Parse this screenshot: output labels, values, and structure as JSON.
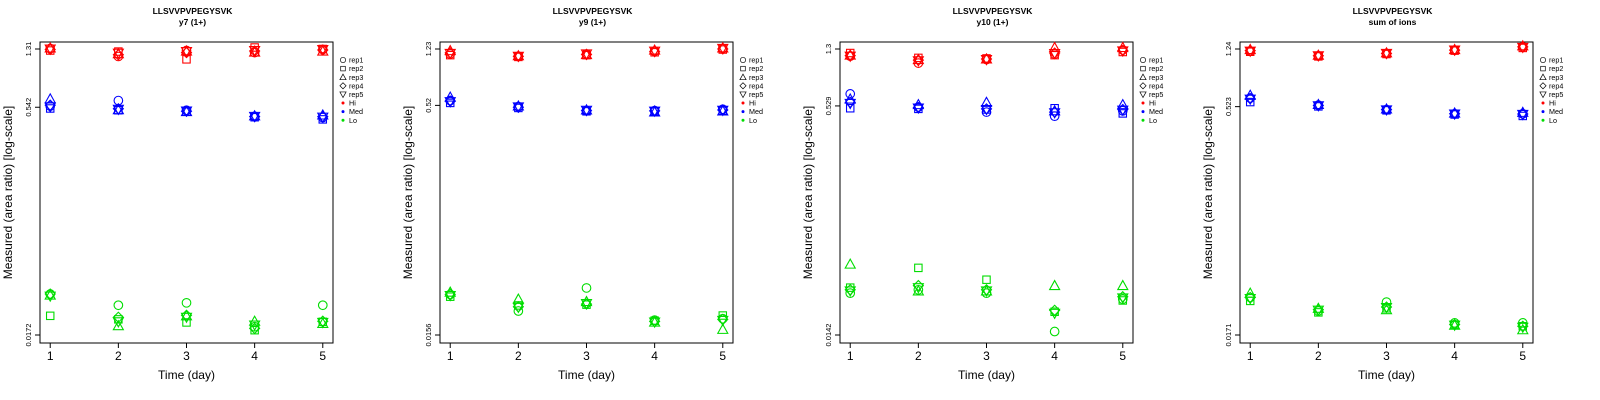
{
  "chart_data": [
    {
      "type": "scatter",
      "title": "LLSVVPVPEGYSVK",
      "subtitle": "y7 (1+)",
      "xlabel": "Time (day)",
      "ylabel": "Measured (area ratio) [log-scale]",
      "log_y": true,
      "ylim": [
        0.0172,
        1.31
      ],
      "xticks": [
        "1",
        "2",
        "3",
        "4",
        "5"
      ],
      "yticks": [
        "0.0172",
        "0.542",
        "1.31"
      ],
      "legend": {
        "position": "right",
        "entries": [
          {
            "label": "rep1",
            "shape": "circle"
          },
          {
            "label": "rep2",
            "shape": "square"
          },
          {
            "label": "rep3",
            "shape": "triangle"
          },
          {
            "label": "rep4",
            "shape": "diamond"
          },
          {
            "label": "rep5",
            "shape": "triangle-down"
          },
          {
            "label": "Hi",
            "color": "#ff0000"
          },
          {
            "label": "Med",
            "color": "#0000ff"
          },
          {
            "label": "Lo",
            "color": "#00dd00"
          }
        ]
      },
      "groups": [
        {
          "name": "Hi",
          "color": "#ff0000",
          "reps": [
            [
              1.32,
              1.17,
              1.28,
              1.24,
              1.3
            ],
            [
              1.28,
              1.26,
              1.12,
              1.34,
              1.31
            ],
            [
              1.33,
              1.22,
              1.27,
              1.25,
              1.27
            ],
            [
              1.3,
              1.2,
              1.24,
              1.27,
              1.29
            ],
            [
              1.31,
              1.23,
              1.26,
              1.28,
              1.3
            ]
          ]
        },
        {
          "name": "Med",
          "color": "#0000ff",
          "reps": [
            [
              0.552,
              0.6,
              0.518,
              0.472,
              0.464
            ],
            [
              0.532,
              0.518,
              0.507,
              0.466,
              0.451
            ],
            [
              0.615,
              0.522,
              0.508,
              0.476,
              0.482
            ],
            [
              0.56,
              0.53,
              0.51,
              0.47,
              0.47
            ],
            [
              0.545,
              0.525,
              0.512,
              0.472,
              0.466
            ]
          ]
        },
        {
          "name": "Lo",
          "color": "#00dd00",
          "reps": [
            [
              0.032,
              0.027,
              0.028,
              0.0195,
              0.027
            ],
            [
              0.023,
              0.0218,
              0.0208,
              0.0185,
              0.021
            ],
            [
              0.0315,
              0.0198,
              0.023,
              0.0212,
              0.0205
            ],
            [
              0.032,
              0.0225,
              0.0232,
              0.019,
              0.0212
            ],
            [
              0.031,
              0.021,
              0.0225,
              0.02,
              0.0208
            ]
          ]
        }
      ]
    },
    {
      "type": "scatter",
      "title": "LLSVVPVPEGYSVK",
      "subtitle": "y9 (1+)",
      "xlabel": "Time (day)",
      "ylabel": "Measured (area ratio) [log-scale]",
      "log_y": true,
      "ylim": [
        0.0156,
        1.23
      ],
      "xticks": [
        "1",
        "2",
        "3",
        "4",
        "5"
      ],
      "yticks": [
        "0.0156",
        "0.52",
        "1.23"
      ],
      "legend": {
        "position": "right",
        "entries": [
          {
            "label": "rep1",
            "shape": "circle"
          },
          {
            "label": "rep2",
            "shape": "square"
          },
          {
            "label": "rep3",
            "shape": "triangle"
          },
          {
            "label": "rep4",
            "shape": "diamond"
          },
          {
            "label": "rep5",
            "shape": "triangle-down"
          },
          {
            "label": "Hi",
            "color": "#ff0000"
          },
          {
            "label": "Med",
            "color": "#0000ff"
          },
          {
            "label": "Lo",
            "color": "#00dd00"
          }
        ]
      },
      "groups": [
        {
          "name": "Hi",
          "color": "#ff0000",
          "reps": [
            [
              1.14,
              1.1,
              1.14,
              1.19,
              1.24
            ],
            [
              1.12,
              1.09,
              1.12,
              1.17,
              1.22
            ],
            [
              1.2,
              1.11,
              1.13,
              1.21,
              1.25
            ],
            [
              1.16,
              1.1,
              1.13,
              1.18,
              1.23
            ],
            [
              1.15,
              1.1,
              1.14,
              1.19,
              1.24
            ]
          ]
        },
        {
          "name": "Med",
          "color": "#0000ff",
          "reps": [
            [
              0.56,
              0.51,
              0.48,
              0.48,
              0.49
            ],
            [
              0.54,
              0.5,
              0.475,
              0.475,
              0.48
            ],
            [
              0.59,
              0.515,
              0.485,
              0.47,
              0.478
            ],
            [
              0.555,
              0.505,
              0.48,
              0.478,
              0.485
            ],
            [
              0.55,
              0.508,
              0.482,
              0.476,
              0.482
            ]
          ]
        },
        {
          "name": "Lo",
          "color": "#00dd00",
          "reps": [
            [
              0.029,
              0.0225,
              0.032,
              0.0196,
              0.02
            ],
            [
              0.028,
              0.0245,
              0.0248,
              0.0194,
              0.021
            ],
            [
              0.03,
              0.027,
              0.026,
              0.019,
              0.017
            ],
            [
              0.029,
              0.024,
              0.025,
              0.0192,
              0.0198
            ],
            [
              0.0285,
              0.0238,
              0.0252,
              0.019,
              0.0195
            ]
          ]
        }
      ]
    },
    {
      "type": "scatter",
      "title": "LLSVVPVPEGYSVK",
      "subtitle": "y10 (1+)",
      "xlabel": "Time (day)",
      "ylabel": "Measured (area ratio) [log-scale]",
      "log_y": true,
      "ylim": [
        0.0142,
        1.3
      ],
      "xticks": [
        "1",
        "2",
        "3",
        "4",
        "5"
      ],
      "yticks": [
        "0.0142",
        "0.529",
        "1.3"
      ],
      "legend": {
        "position": "right",
        "entries": [
          {
            "label": "rep1",
            "shape": "circle"
          },
          {
            "label": "rep2",
            "shape": "square"
          },
          {
            "label": "rep3",
            "shape": "triangle"
          },
          {
            "label": "rep4",
            "shape": "diamond"
          },
          {
            "label": "rep5",
            "shape": "triangle-down"
          },
          {
            "label": "Hi",
            "color": "#ff0000"
          },
          {
            "label": "Med",
            "color": "#0000ff"
          },
          {
            "label": "Lo",
            "color": "#00dd00"
          }
        ]
      },
      "groups": [
        {
          "name": "Hi",
          "color": "#ff0000",
          "reps": [
            [
              1.16,
              1.04,
              1.1,
              1.2,
              1.28
            ],
            [
              1.22,
              1.13,
              1.12,
              1.18,
              1.24
            ],
            [
              1.18,
              1.1,
              1.11,
              1.33,
              1.33
            ],
            [
              1.17,
              1.09,
              1.11,
              1.22,
              1.27
            ],
            [
              1.16,
              1.08,
              1.1,
              1.21,
              1.26
            ]
          ]
        },
        {
          "name": "Med",
          "color": "#0000ff",
          "reps": [
            [
              0.64,
              0.52,
              0.48,
              0.45,
              0.49
            ],
            [
              0.51,
              0.505,
              0.5,
              0.51,
              0.47
            ],
            [
              0.59,
              0.54,
              0.56,
              0.49,
              0.54
            ],
            [
              0.56,
              0.515,
              0.505,
              0.48,
              0.5
            ],
            [
              0.55,
              0.512,
              0.5,
              0.475,
              0.495
            ]
          ]
        },
        {
          "name": "Lo",
          "color": "#00dd00",
          "reps": [
            [
              0.0275,
              0.029,
              0.0275,
              0.015,
              0.025
            ],
            [
              0.03,
              0.041,
              0.034,
              0.0205,
              0.0245
            ],
            [
              0.0435,
              0.0285,
              0.0285,
              0.031,
              0.031
            ],
            [
              0.029,
              0.031,
              0.029,
              0.021,
              0.026
            ],
            [
              0.0285,
              0.03,
              0.0285,
              0.02,
              0.0255
            ]
          ]
        }
      ]
    },
    {
      "type": "scatter",
      "title": "LLSVVPVPEGYSVK",
      "subtitle": "sum of ions",
      "xlabel": "Time (day)",
      "ylabel": "Measured (area ratio) [log-scale]",
      "log_y": true,
      "ylim": [
        0.0171,
        1.24
      ],
      "xticks": [
        "1",
        "2",
        "3",
        "4",
        "5"
      ],
      "yticks": [
        "0.0171",
        "0.523",
        "1.24"
      ],
      "legend": {
        "position": "right",
        "entries": [
          {
            "label": "rep1",
            "shape": "circle"
          },
          {
            "label": "rep2",
            "shape": "square"
          },
          {
            "label": "rep3",
            "shape": "triangle"
          },
          {
            "label": "rep4",
            "shape": "diamond"
          },
          {
            "label": "rep5",
            "shape": "triangle-down"
          },
          {
            "label": "Hi",
            "color": "#ff0000"
          },
          {
            "label": "Med",
            "color": "#0000ff"
          },
          {
            "label": "Lo",
            "color": "#00dd00"
          }
        ]
      },
      "groups": [
        {
          "name": "Hi",
          "color": "#ff0000",
          "reps": [
            [
              1.2,
              1.12,
              1.16,
              1.22,
              1.28
            ],
            [
              1.19,
              1.11,
              1.15,
              1.21,
              1.26
            ],
            [
              1.23,
              1.13,
              1.17,
              1.23,
              1.3
            ],
            [
              1.21,
              1.12,
              1.16,
              1.22,
              1.28
            ],
            [
              1.2,
              1.12,
              1.16,
              1.22,
              1.27
            ]
          ]
        },
        {
          "name": "Med",
          "color": "#0000ff",
          "reps": [
            [
              0.595,
              0.535,
              0.5,
              0.47,
              0.47
            ],
            [
              0.56,
              0.525,
              0.495,
              0.465,
              0.455
            ],
            [
              0.62,
              0.54,
              0.505,
              0.475,
              0.48
            ],
            [
              0.59,
              0.532,
              0.5,
              0.47,
              0.468
            ],
            [
              0.585,
              0.53,
              0.498,
              0.468,
              0.465
            ]
          ]
        },
        {
          "name": "Lo",
          "color": "#00dd00",
          "reps": [
            [
              0.03,
              0.0245,
              0.028,
              0.0205,
              0.0205
            ],
            [
              0.0285,
              0.024,
              0.0255,
              0.02,
              0.0195
            ],
            [
              0.032,
              0.0255,
              0.025,
              0.0198,
              0.0185
            ],
            [
              0.03,
              0.025,
              0.026,
              0.02,
              0.0195
            ],
            [
              0.0295,
              0.0248,
              0.0258,
              0.0198,
              0.0192
            ]
          ]
        }
      ]
    }
  ]
}
